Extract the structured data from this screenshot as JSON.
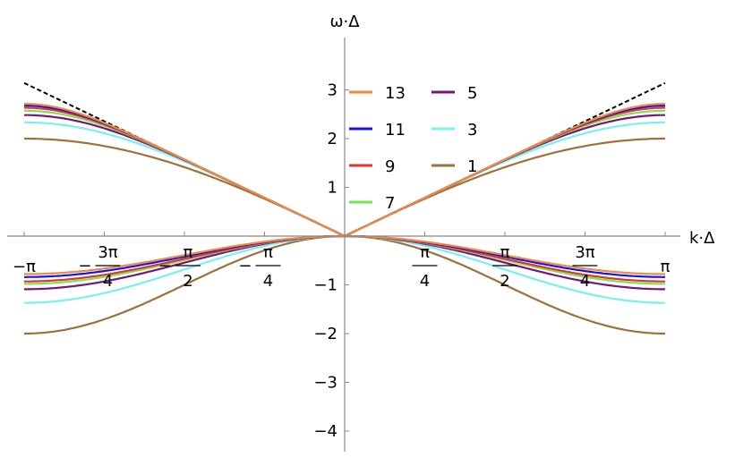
{
  "chart_data": {
    "type": "line",
    "xlabel": "k·Δ",
    "ylabel": "ω·Δ",
    "xlim": [
      -3.14159,
      3.14159
    ],
    "ylim": [
      -4.3,
      3.8
    ],
    "grid": false,
    "legend_position": "center-top",
    "x_ticks": [
      {
        "value": -3.14159,
        "label": "−π"
      },
      {
        "value": -2.35619,
        "label": "−3π/4",
        "sign": "−",
        "num": "3π",
        "den": "4"
      },
      {
        "value": -1.5708,
        "label": "−π/2",
        "sign": "−",
        "num": "π",
        "den": "2"
      },
      {
        "value": -0.7854,
        "label": "−π/4",
        "sign": "−",
        "num": "π",
        "den": "4"
      },
      {
        "value": 0.7854,
        "label": "π/4",
        "sign": "",
        "num": "π",
        "den": "4"
      },
      {
        "value": 1.5708,
        "label": "π/2",
        "sign": "",
        "num": "π",
        "den": "2"
      },
      {
        "value": 2.35619,
        "label": "3π/4",
        "sign": "",
        "num": "3π",
        "den": "4"
      },
      {
        "value": 3.14159,
        "label": "π"
      }
    ],
    "y_ticks": [
      {
        "value": 3,
        "label": "3"
      },
      {
        "value": 2,
        "label": "2"
      },
      {
        "value": 1,
        "label": "1"
      },
      {
        "value": -1,
        "label": "−1"
      },
      {
        "value": -2,
        "label": "−2"
      },
      {
        "value": -3,
        "label": "−3"
      },
      {
        "value": -4,
        "label": "−4"
      }
    ],
    "reference_lines": [
      {
        "style": "dashed",
        "color": "#000000",
        "points": [
          [
            -3.14159,
            3.14159
          ],
          [
            0,
            0
          ],
          [
            3.14159,
            3.14159
          ]
        ]
      }
    ],
    "series": [
      {
        "name": "13",
        "order": 13,
        "color": "#f08a3c",
        "upper_peak_x": 2.27,
        "upper_peak_y": 1.97,
        "lower_min_y": -0.78
      },
      {
        "name": "11",
        "order": 11,
        "color": "#1414e6",
        "upper_peak_x": 2.22,
        "upper_peak_y": 1.91,
        "lower_min_y": -0.84
      },
      {
        "name": "9",
        "order": 9,
        "color": "#e63232",
        "upper_peak_x": 2.17,
        "upper_peak_y": 1.84,
        "lower_min_y": -0.93
      },
      {
        "name": "7",
        "order": 7,
        "color": "#78e650",
        "upper_peak_x": 2.1,
        "upper_peak_y": 1.72,
        "lower_min_y": -0.98
      },
      {
        "name": "5",
        "order": 5,
        "color": "#78147d",
        "upper_peak_x": 2.0,
        "upper_peak_y": 1.54,
        "lower_min_y": -1.09
      },
      {
        "name": "3",
        "order": 3,
        "color": "#78f0f0",
        "upper_peak_x": 1.85,
        "upper_peak_y": 1.37,
        "lower_min_y": -1.37
      },
      {
        "name": "1",
        "order": 1,
        "color": "#a0703c",
        "upper_peak_x": 1.5708,
        "upper_peak_y": 1.0,
        "lower_min_y": -2.0
      }
    ],
    "legend_order": [
      "13",
      "5",
      "11",
      "3",
      "9",
      "1",
      "7"
    ]
  }
}
